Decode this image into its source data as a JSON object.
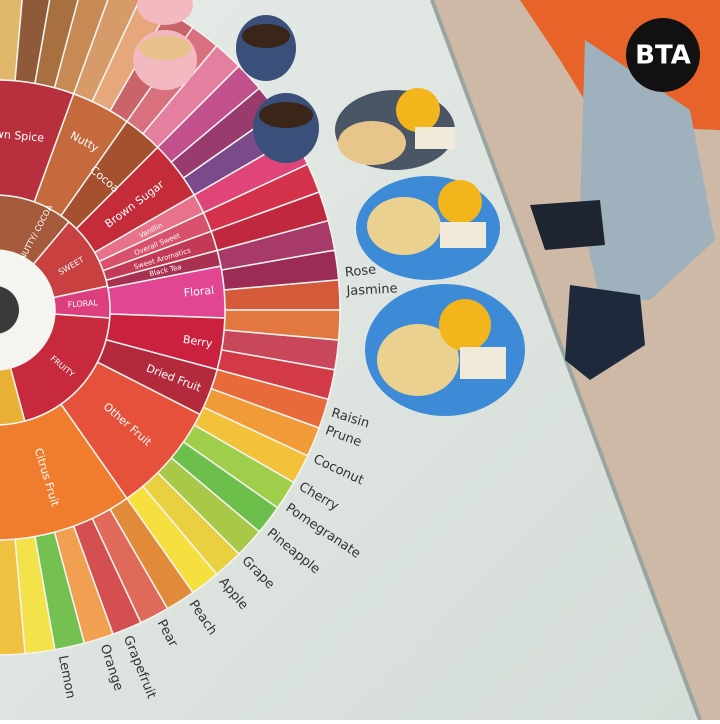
{
  "logo": "BTA",
  "wheel": {
    "inner": [
      "NUTTY/ COCOA",
      "SWEET",
      "FLORAL",
      "FRUITY"
    ],
    "middle": [
      "Brown Spice",
      "Nutty",
      "Cocoa",
      "Brown Sugar",
      "Vanillin",
      "Overall Sweet",
      "Sweet Aromatics",
      "Black Tea",
      "Floral",
      "Berry",
      "Dried Fruit",
      "Other Fruit",
      "Citrus Fruit"
    ],
    "outer": [
      "Rose",
      "Jasmine",
      "Raisin",
      "Prune",
      "Coconut",
      "Cherry",
      "Pomegranate",
      "Pineapple",
      "Grape",
      "Apple",
      "Peach",
      "Pear",
      "Grapefruit",
      "Orange",
      "Lemon"
    ]
  }
}
